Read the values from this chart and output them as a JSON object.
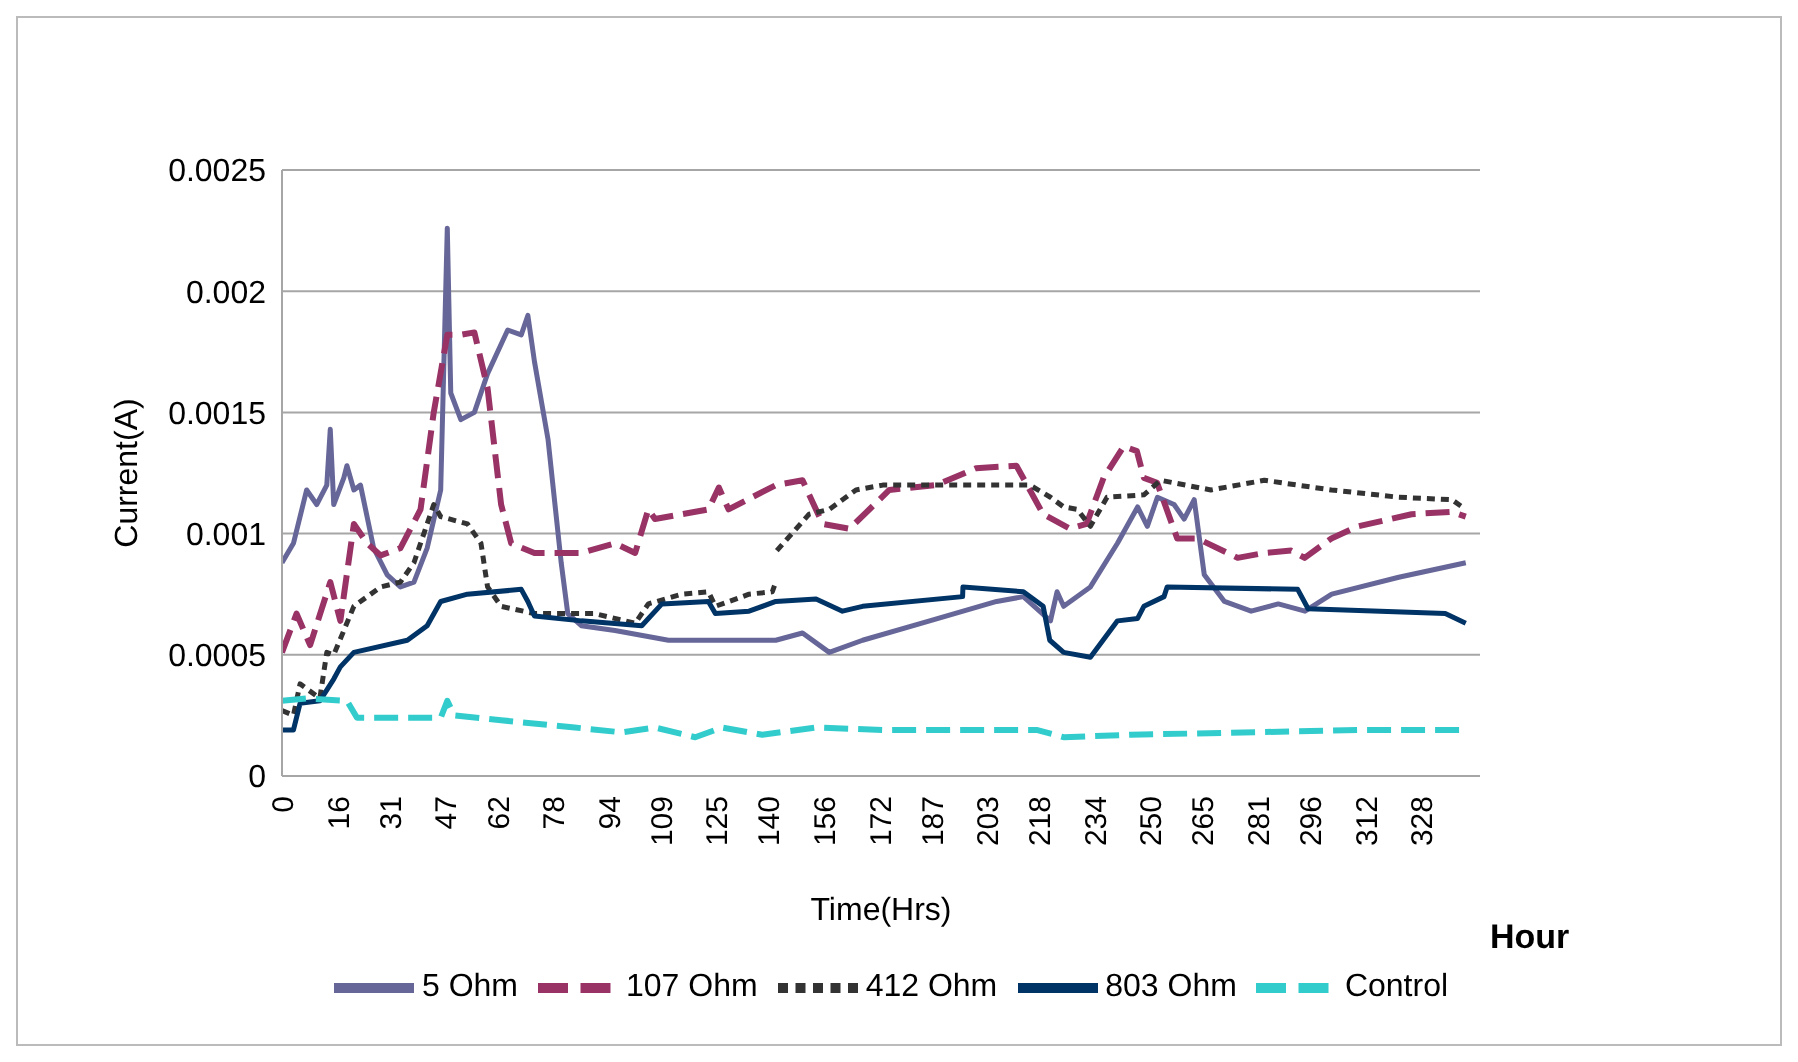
{
  "chart_data": {
    "type": "line",
    "xlabel": "Time(Hrs)",
    "ylabel": "Current(A)",
    "annotations": [
      "Hour"
    ],
    "xlim": [
      0,
      345
    ],
    "xticks": [
      0,
      16,
      31,
      47,
      62,
      78,
      94,
      109,
      125,
      140,
      156,
      172,
      187,
      203,
      218,
      234,
      250,
      265,
      281,
      296,
      312,
      328
    ],
    "ylim": [
      0,
      0.0025
    ],
    "yticks": [
      0,
      0.0005,
      0.001,
      0.0015,
      0.002,
      0.0025
    ],
    "grid": "y",
    "legend": "bottom",
    "marker": "none",
    "series": [
      {
        "name": "5 Ohm",
        "color": "#666699",
        "line_style": "solid",
        "x": [
          0,
          3.3,
          7.1,
          10,
          12.9,
          13.9,
          14.9,
          17.8,
          18.7,
          20.7,
          22.6,
          26.4,
          30.3,
          34.1,
          38,
          41.8,
          45.7,
          47.6,
          48.6,
          51.5,
          55.4,
          59.2,
          65,
          68.9,
          70.8,
          72.7,
          76.6,
          80.4,
          82.3,
          86.2,
          95.9,
          111.3,
          142.2,
          149.9,
          157.6,
          167.2,
          186.5,
          205.8,
          213.5,
          221.3,
          223.2,
          225.1,
          232.8,
          240.6,
          246.4,
          249.2,
          252.1,
          256.9,
          259.8,
          262.7,
          265.6,
          271.4,
          279.1,
          286.9,
          294.6,
          302.3,
          321.6,
          340.9
        ],
        "values": [
          0.00088,
          0.00096,
          0.00118,
          0.00112,
          0.0012,
          0.00143,
          0.00112,
          0.00123,
          0.00128,
          0.00118,
          0.0012,
          0.00094,
          0.00083,
          0.00078,
          0.0008,
          0.00094,
          0.00118,
          0.00226,
          0.00158,
          0.00147,
          0.0015,
          0.00166,
          0.00184,
          0.00182,
          0.0019,
          0.00171,
          0.00139,
          0.00088,
          0.00067,
          0.00062,
          0.0006,
          0.00056,
          0.00056,
          0.00059,
          0.00051,
          0.00056,
          0.00064,
          0.00072,
          0.00074,
          0.00064,
          0.00076,
          0.0007,
          0.00078,
          0.00096,
          0.00111,
          0.00103,
          0.00115,
          0.00112,
          0.00106,
          0.00114,
          0.00083,
          0.00072,
          0.00068,
          0.00071,
          0.00068,
          0.00075,
          0.00082,
          0.00088
        ]
      },
      {
        "name": "107 Ohm",
        "color": "#993366",
        "line_style": "dashed",
        "x": [
          0,
          4.2,
          8.1,
          13.9,
          16.8,
          20.7,
          24.5,
          28.4,
          34.1,
          39.9,
          43.7,
          47.6,
          51.5,
          55.4,
          59.2,
          63.1,
          66,
          72.7,
          86.2,
          95.9,
          101.7,
          105.5,
          107.4,
          122.8,
          125.8,
          128.6,
          142.2,
          149.9,
          155.7,
          163.4,
          174.9,
          188.4,
          199.9,
          211.5,
          219.2,
          226.9,
          231.7,
          236.6,
          242.4,
          246.2,
          248.2,
          252,
          257.8,
          263.6,
          275.2,
          282.9,
          290.6,
          294.5,
          302.2,
          309.9,
          325.3,
          336.9,
          340.9
        ],
        "values": [
          0.00051,
          0.00067,
          0.00054,
          0.0008,
          0.00064,
          0.00104,
          0.00096,
          0.00091,
          0.00094,
          0.0011,
          0.0015,
          0.00182,
          0.00182,
          0.00183,
          0.0016,
          0.00112,
          0.00096,
          0.00092,
          0.00092,
          0.00096,
          0.00092,
          0.0011,
          0.00106,
          0.0011,
          0.00119,
          0.0011,
          0.0012,
          0.00122,
          0.00104,
          0.00102,
          0.00118,
          0.0012,
          0.00127,
          0.00128,
          0.00108,
          0.00102,
          0.00104,
          0.00123,
          0.00136,
          0.00134,
          0.00123,
          0.00121,
          0.00098,
          0.00098,
          0.0009,
          0.00092,
          0.00093,
          0.0009,
          0.00098,
          0.00103,
          0.00108,
          0.00109,
          0.00107
        ]
      },
      {
        "name": "412 Ohm",
        "color": "#333333",
        "line_style": "dotted",
        "x": [
          0,
          3.3,
          5.2,
          10.9,
          12.9,
          14.9,
          20.7,
          28.4,
          34.1,
          38,
          43.7,
          45.7,
          53.4,
          57.3,
          59.2,
          63.1,
          72.7,
          90.1,
          101.7,
          105.5,
          115.1,
          122.8,
          124.8,
          134.5,
          141.2,
          142.2,
          142.3,
          142.5,
          151.8,
          157.6,
          165.3,
          173,
          215.4,
          221.3,
          225.1,
          229,
          232.8,
          237.6,
          248.2,
          253,
          267.5,
          282.9,
          302.2,
          321.6,
          336.9,
          340.9
        ],
        "values": [
          0.00027,
          0.00025,
          0.00038,
          0.00032,
          0.00051,
          0.0005,
          0.0007,
          0.00078,
          0.0008,
          0.00088,
          0.00112,
          0.00107,
          0.00104,
          0.00096,
          0.00078,
          0.0007,
          0.00067,
          0.00067,
          0.00063,
          0.00071,
          0.00075,
          0.00076,
          0.0007,
          0.00075,
          0.00076,
          0.0008,
          null,
          0.00093,
          0.00108,
          0.0011,
          0.00118,
          0.0012,
          0.0012,
          0.00115,
          0.00111,
          0.0011,
          0.00103,
          0.00115,
          0.00116,
          0.00122,
          0.00118,
          0.00122,
          0.00118,
          0.00115,
          0.00114,
          0.0011
        ]
      },
      {
        "name": "803 Ohm",
        "color": "#003366",
        "line_style": "solid",
        "x": [
          0,
          3.3,
          5.2,
          10.9,
          14.9,
          16.8,
          20.7,
          36.1,
          41.8,
          45.7,
          53.4,
          68.9,
          70.8,
          72.7,
          86.2,
          103.6,
          109.4,
          122.8,
          124.8,
          134.5,
          142.2,
          153.8,
          161.4,
          167.2,
          196,
          196.1,
          213.5,
          219.2,
          221.1,
          225.1,
          232.8,
          240.6,
          246.4,
          248.2,
          254,
          254.9,
          292.5,
          295.5,
          335,
          340.9
        ],
        "values": [
          0.00019,
          0.00019,
          0.0003,
          0.00031,
          0.0004,
          0.00045,
          0.00051,
          0.00056,
          0.00062,
          0.00072,
          0.00075,
          0.00077,
          0.00072,
          0.00066,
          0.00064,
          0.00062,
          0.00071,
          0.00072,
          0.00067,
          0.00068,
          0.00072,
          0.00073,
          0.00068,
          0.0007,
          0.00074,
          0.00078,
          0.00076,
          0.0007,
          0.00056,
          0.00051,
          0.00049,
          0.00064,
          0.00065,
          0.0007,
          0.00074,
          0.00078,
          0.00077,
          0.00069,
          0.00067,
          0.00063
        ]
      },
      {
        "name": "Control",
        "color": "#33cccc",
        "line_style": "dashed",
        "x": [
          0,
          7.1,
          18.7,
          21.6,
          45.7,
          47.6,
          49.6,
          63.1,
          84.3,
          97.8,
          107.4,
          119,
          126.7,
          138.3,
          153.8,
          173,
          217.3,
          225.1,
          244.4,
          311.9,
          340.9
        ],
        "values": [
          0.00031,
          0.00032,
          0.00031,
          0.00024,
          0.00024,
          0.00031,
          0.00025,
          0.00023,
          0.0002,
          0.00018,
          0.0002,
          0.00016,
          0.0002,
          0.00017,
          0.0002,
          0.00019,
          0.00019,
          0.00016,
          0.00017,
          0.00019,
          0.00019
        ]
      }
    ]
  }
}
